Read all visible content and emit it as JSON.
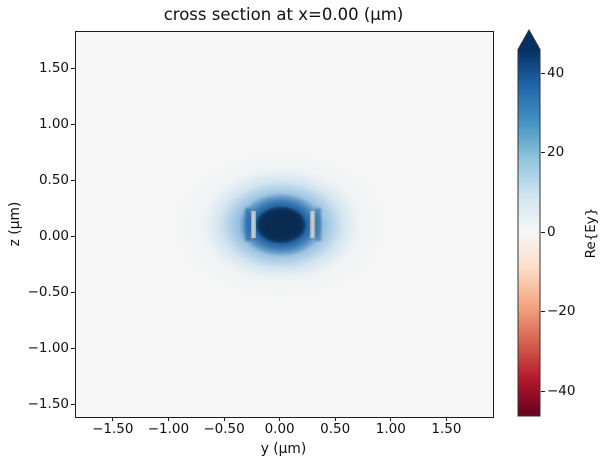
{
  "chart_data": {
    "type": "heatmap",
    "title": "cross section at x=0.00 (μm)",
    "xlabel": "y (μm)",
    "ylabel": "z (μm)",
    "xlim": [
      -1.84,
      1.91
    ],
    "ylim": [
      -1.6,
      1.83
    ],
    "grid": false,
    "legend": null,
    "x_ticks": {
      "values": [
        -1.5,
        -1.0,
        -0.5,
        0.0,
        0.5,
        1.0,
        1.5
      ],
      "labels": [
        "−1.50",
        "−1.00",
        "−0.50",
        "0.00",
        "0.50",
        "1.00",
        "1.50"
      ]
    },
    "y_ticks": {
      "values": [
        1.5,
        1.0,
        0.5,
        0.0,
        -0.5,
        -1.0,
        -1.5
      ],
      "labels": [
        "1.50",
        "1.00",
        "0.50",
        "0.00",
        "−0.50",
        "−1.00",
        "−1.50"
      ]
    },
    "colorbar": {
      "label": "Re{Ey}",
      "vmin": -46,
      "vmax": 46,
      "extend": "max",
      "colormap": "RdBu_r",
      "colormap_stops_low_to_high": [
        "#67001f",
        "#b2182b",
        "#d6604d",
        "#f4a582",
        "#fddbc7",
        "#f7f7f7",
        "#d1e5f0",
        "#92c5de",
        "#4393c3",
        "#2166ac",
        "#053061"
      ],
      "ticks": {
        "values": [
          40,
          20,
          0,
          -20,
          -40
        ],
        "labels": [
          "40",
          "20",
          "0",
          "−20",
          "−40"
        ]
      }
    },
    "field_profile": {
      "description": "Re{Ey} of a confined waveguide mode: single strong positive (dark blue) lobe saturating the colormap, surrounded by a light-blue halo over a near-zero off-white background",
      "peak": {
        "y": 0.0,
        "z": 0.11,
        "value": "> 46 (saturated; colorbar extend arrow)"
      },
      "core_extent_um": {
        "y": [
          -0.21,
          0.21
        ],
        "z": [
          -0.04,
          0.26
        ]
      },
      "halo_extent_um": {
        "y": [
          -0.75,
          0.75
        ],
        "z": [
          -0.45,
          0.65
        ]
      },
      "background_value": 0
    },
    "structure_overlay": {
      "description": "gray waveguide sidewall outlines (epsilon overlay)",
      "sidewall_y_um": [
        -0.27,
        0.27
      ],
      "sidewall_z_span_um": [
        0.0,
        0.235
      ]
    }
  },
  "colors": {
    "figure_bg": "#ffffff",
    "plot_bg": "#f5f6f5",
    "field_core": "#092b52",
    "field_mid": "#175591",
    "field_glow": "#4f97cb",
    "sidewall_gray": "#c6cdd0",
    "cbar_arrow_over": "#053061",
    "text": "#111111",
    "spine": "#1b1b1b"
  }
}
